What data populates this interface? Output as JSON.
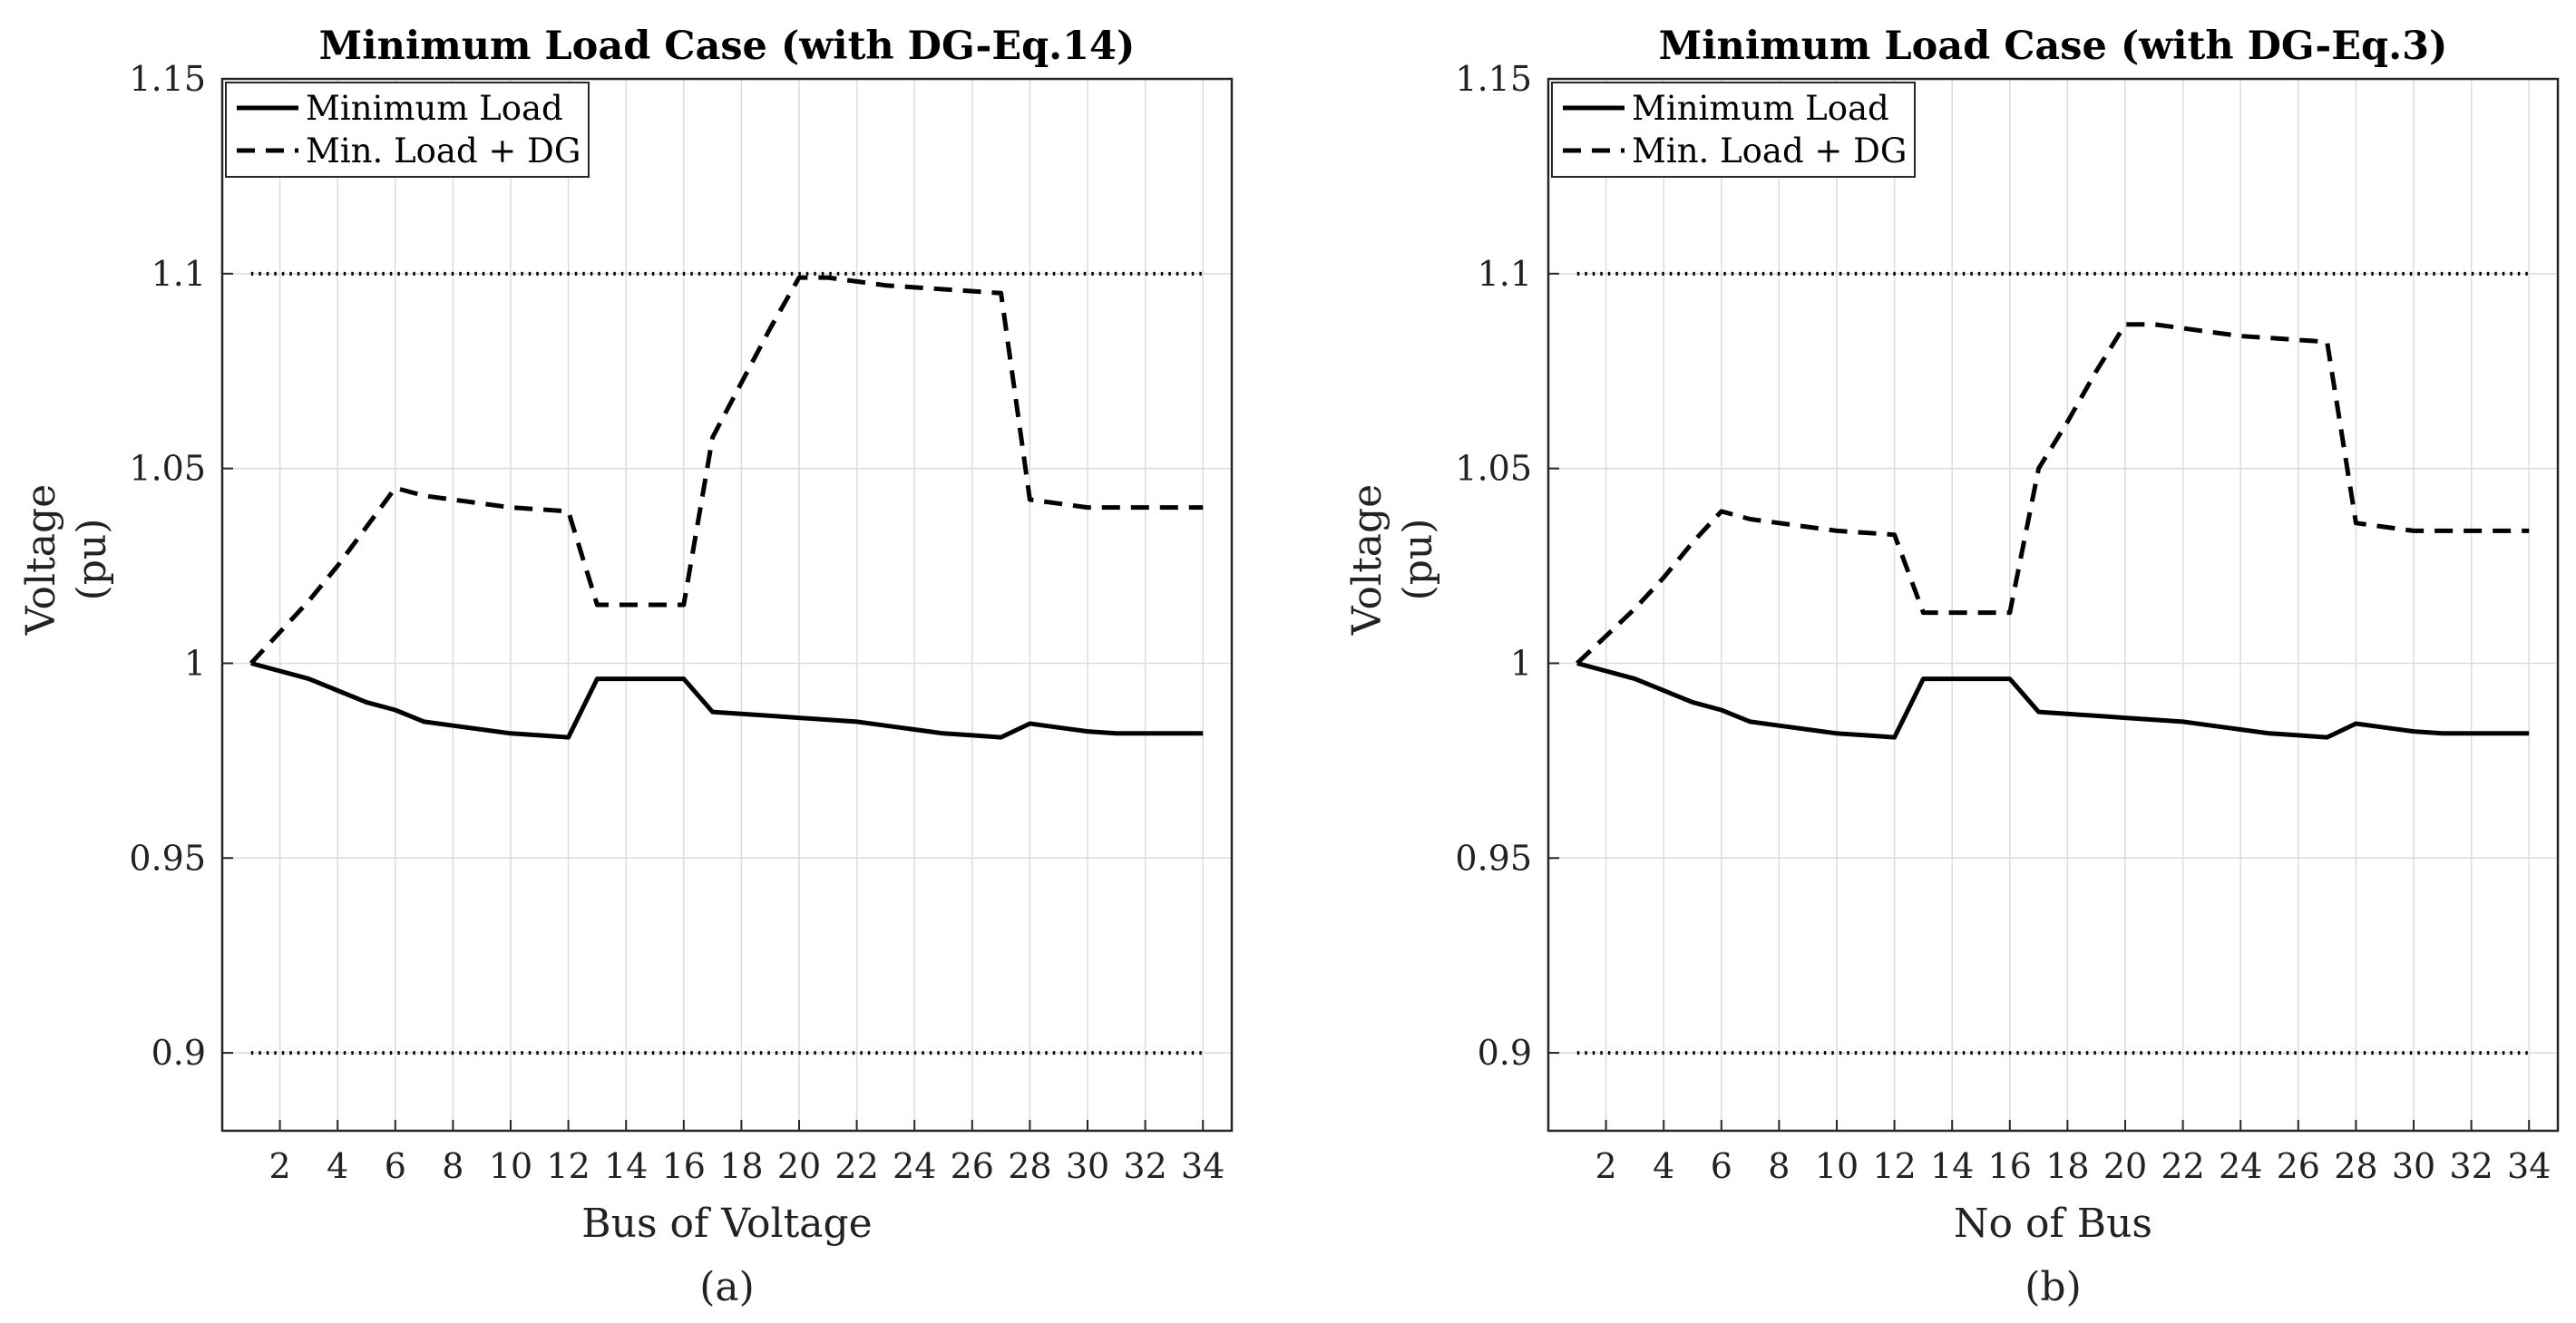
{
  "colors": {
    "line": "#000000",
    "grid": "#dcdcdc",
    "axis": "#262626",
    "background": "#ffffff"
  },
  "chart_data": [
    {
      "type": "line",
      "caption": "(a)",
      "title": "Minimum Load Case (with DG-Eq.14)",
      "xlabel": "Bus of Voltage",
      "ylabel": [
        "Voltage",
        "(pu)"
      ],
      "xlim": [
        0,
        35
      ],
      "ylim": [
        0.88,
        1.15
      ],
      "xticks": [
        2,
        4,
        6,
        8,
        10,
        12,
        14,
        16,
        18,
        20,
        22,
        24,
        26,
        28,
        30,
        32,
        34
      ],
      "yticks": [
        0.9,
        0.95,
        1,
        1.05,
        1.1,
        1.15
      ],
      "ytick_labels": [
        "0.9",
        "0.95",
        "1",
        "1.05",
        "1.1",
        "1.15"
      ],
      "grid": true,
      "legend_position": "top-left",
      "reference_lines": [
        1.1,
        0.9
      ],
      "series": [
        {
          "name": "Minimum Load",
          "style": "solid",
          "x": [
            1,
            2,
            3,
            4,
            5,
            6,
            7,
            8,
            9,
            10,
            11,
            12,
            13,
            14,
            15,
            16,
            17,
            18,
            19,
            20,
            21,
            22,
            23,
            24,
            25,
            26,
            27,
            28,
            29,
            30,
            31,
            32,
            33,
            34
          ],
          "values": [
            1.0,
            0.998,
            0.996,
            0.993,
            0.99,
            0.988,
            0.985,
            0.984,
            0.983,
            0.982,
            0.9815,
            0.981,
            0.996,
            0.996,
            0.996,
            0.996,
            0.9875,
            0.987,
            0.9865,
            0.986,
            0.9855,
            0.985,
            0.984,
            0.983,
            0.982,
            0.9815,
            0.981,
            0.9845,
            0.9835,
            0.9825,
            0.982,
            0.982,
            0.982,
            0.982
          ]
        },
        {
          "name": "Min. Load + DG",
          "style": "dashed",
          "x": [
            1,
            2,
            3,
            4,
            5,
            6,
            7,
            8,
            9,
            10,
            11,
            12,
            13,
            14,
            15,
            16,
            17,
            18,
            19,
            20,
            21,
            22,
            23,
            24,
            25,
            26,
            27,
            28,
            29,
            30,
            31,
            32,
            33,
            34
          ],
          "values": [
            1.0,
            1.008,
            1.016,
            1.025,
            1.035,
            1.045,
            1.043,
            1.042,
            1.041,
            1.04,
            1.0395,
            1.039,
            1.015,
            1.015,
            1.015,
            1.015,
            1.058,
            1.072,
            1.086,
            1.099,
            1.099,
            1.098,
            1.097,
            1.0965,
            1.096,
            1.0955,
            1.095,
            1.042,
            1.041,
            1.04,
            1.04,
            1.04,
            1.04,
            1.04
          ]
        }
      ]
    },
    {
      "type": "line",
      "caption": "(b)",
      "title": "Minimum Load Case (with DG-Eq.3)",
      "xlabel": "No of Bus",
      "ylabel": [
        "Voltage",
        "(pu)"
      ],
      "xlim": [
        0,
        35
      ],
      "ylim": [
        0.88,
        1.15
      ],
      "xticks": [
        2,
        4,
        6,
        8,
        10,
        12,
        14,
        16,
        18,
        20,
        22,
        24,
        26,
        28,
        30,
        32,
        34
      ],
      "yticks": [
        0.9,
        0.95,
        1,
        1.05,
        1.1,
        1.15
      ],
      "ytick_labels": [
        "0.9",
        "0.95",
        "1",
        "1.05",
        "1.1",
        "1.15"
      ],
      "grid": true,
      "legend_position": "top-left",
      "reference_lines": [
        1.1,
        0.9
      ],
      "series": [
        {
          "name": "Minimum Load",
          "style": "solid",
          "x": [
            1,
            2,
            3,
            4,
            5,
            6,
            7,
            8,
            9,
            10,
            11,
            12,
            13,
            14,
            15,
            16,
            17,
            18,
            19,
            20,
            21,
            22,
            23,
            24,
            25,
            26,
            27,
            28,
            29,
            30,
            31,
            32,
            33,
            34
          ],
          "values": [
            1.0,
            0.998,
            0.996,
            0.993,
            0.99,
            0.988,
            0.985,
            0.984,
            0.983,
            0.982,
            0.9815,
            0.981,
            0.996,
            0.996,
            0.996,
            0.996,
            0.9875,
            0.987,
            0.9865,
            0.986,
            0.9855,
            0.985,
            0.984,
            0.983,
            0.982,
            0.9815,
            0.981,
            0.9845,
            0.9835,
            0.9825,
            0.982,
            0.982,
            0.982,
            0.982
          ]
        },
        {
          "name": "Min. Load + DG",
          "style": "dashed",
          "x": [
            1,
            2,
            3,
            4,
            5,
            6,
            7,
            8,
            9,
            10,
            11,
            12,
            13,
            14,
            15,
            16,
            17,
            18,
            19,
            20,
            21,
            22,
            23,
            24,
            25,
            26,
            27,
            28,
            29,
            30,
            31,
            32,
            33,
            34
          ],
          "values": [
            1.0,
            1.007,
            1.014,
            1.022,
            1.031,
            1.039,
            1.037,
            1.036,
            1.035,
            1.034,
            1.0335,
            1.033,
            1.013,
            1.013,
            1.013,
            1.013,
            1.05,
            1.062,
            1.075,
            1.087,
            1.087,
            1.086,
            1.085,
            1.084,
            1.0835,
            1.083,
            1.0825,
            1.036,
            1.035,
            1.034,
            1.034,
            1.034,
            1.034,
            1.034
          ]
        }
      ]
    }
  ]
}
